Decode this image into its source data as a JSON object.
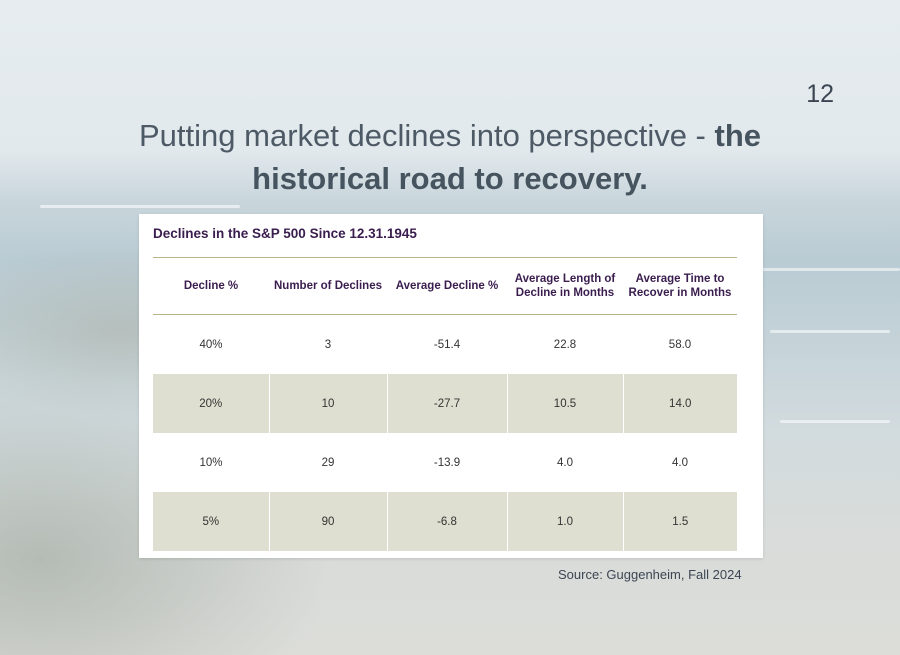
{
  "slide": {
    "number": "12",
    "title_regular": "Putting market declines into perspective - ",
    "title_bold_1": "the",
    "title_bold_2": "historical road to recovery."
  },
  "table": {
    "title": "Declines in the S&P 500 Since 12.31.1945",
    "headers": [
      "Decline %",
      "Number of Declines",
      "Average Decline %",
      "Average Length of Decline in Months",
      "Average Time to Recover in Months"
    ],
    "rows": [
      [
        "40%",
        "3",
        "-51.4",
        "22.8",
        "58.0"
      ],
      [
        "20%",
        "10",
        "-27.7",
        "10.5",
        "14.0"
      ],
      [
        "10%",
        "29",
        "-13.9",
        "4.0",
        "4.0"
      ],
      [
        "5%",
        "90",
        "-6.8",
        "1.0",
        "1.5"
      ]
    ]
  },
  "source": "Source: Guggenheim, Fall 2024",
  "colors": {
    "title_text": "#4d5a66",
    "table_heading": "#3a1d4e",
    "row_shade": "#dedfd0",
    "rule": "#b9b38c"
  }
}
